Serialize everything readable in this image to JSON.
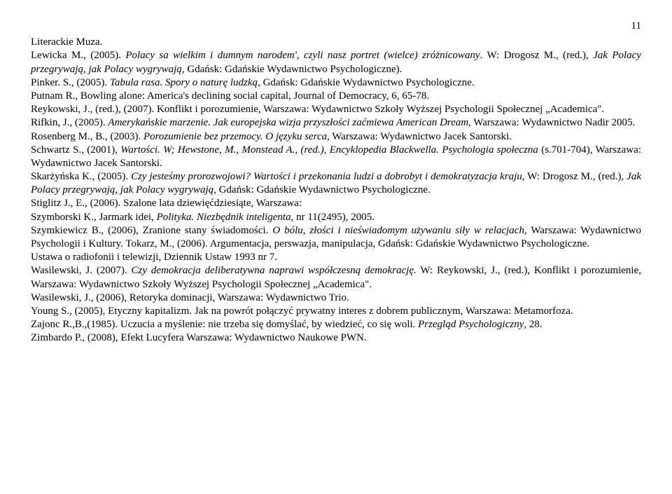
{
  "page_number": "11",
  "entries": [
    {
      "segments": [
        {
          "t": "Literackie Muza."
        }
      ]
    },
    {
      "segments": [
        {
          "t": "Lewicka M., (2005). "
        },
        {
          "t": "Polacy sa wielkim i dumnym narodem', czyli nasz portret (wielce) zróżnicowany",
          "i": true
        },
        {
          "t": ". W: Drogosz M., (red.), "
        },
        {
          "t": "Jak Polacy przegrywają, jak Polacy wygrywają",
          "i": true
        },
        {
          "t": ", Gdańsk: Gdańskie Wydawnictwo Psychologiczne)."
        }
      ]
    },
    {
      "segments": [
        {
          "t": "Pinker. S., (2005). "
        },
        {
          "t": "Tabula rasa. Spory o naturę ludzką",
          "i": true
        },
        {
          "t": ", Gdańsk: Gdańskie Wydawnictwo Psychologiczne."
        }
      ]
    },
    {
      "segments": [
        {
          "t": "Putnam R., Bowling alone: America's declining social capital, Journal of Democracy, 6, 65-78."
        }
      ]
    },
    {
      "segments": [
        {
          "t": "Reykowski, J., (red.), (2007). Konflikt i porozumienie, Warszawa: Wydawnictwo Szkoły Wyższej Psychologii Społecznej „Academica\"."
        }
      ]
    },
    {
      "segments": [
        {
          "t": "Rifkin, J., (2005). "
        },
        {
          "t": "Amerykańskie marzenie. Jak europejska wizja przyszłości zaćmiewa American Dream",
          "i": true
        },
        {
          "t": ", Warszawa: Wydawnictwo Nadir 2005."
        }
      ]
    },
    {
      "segments": [
        {
          "t": "Rosenberg M., B., (2003). "
        },
        {
          "t": "Porozumienie bez przemocy. O języku serca",
          "i": true
        },
        {
          "t": ", Warszawa: Wydawnictwo Jacek Santorski."
        }
      ]
    },
    {
      "segments": [
        {
          "t": "Schwartz S., (2001), "
        },
        {
          "t": "Wartości. W; Hewstone, M., Monstead A., (red.), Encyklopedia Blackwella. Psychologia społeczna",
          "i": true
        },
        {
          "t": " (s.701-704), Warszawa: Wydawnictwo Jacek Santorski."
        }
      ]
    },
    {
      "segments": [
        {
          "t": "Skarżyńska K., (2005). "
        },
        {
          "t": "Czy jesteśmy prorozwojowi? Wartości i przekonania ludzi a dobrobyt i demokratyzacja kraju,",
          "i": true
        },
        {
          "t": " W: Drogosz M., (red.), "
        },
        {
          "t": "Jak Polacy przegrywają, jak Polacy wygrywają,",
          "i": true
        },
        {
          "t": " Gdańsk: Gdańskie Wydawnictwo Psychologiczne."
        }
      ]
    },
    {
      "segments": [
        {
          "t": "Stiglitz J., E., (2006). Szalone lata dziewięćdziesiąte, Warszawa:"
        }
      ]
    },
    {
      "segments": [
        {
          "t": "Szymborski K., Jarmark idei, "
        },
        {
          "t": "Polityka. Niezbędnik inteligenta",
          "i": true
        },
        {
          "t": ", nr 11(2495), 2005."
        }
      ]
    },
    {
      "segments": [
        {
          "t": "Szymkiewicz B., (2006), Zranione stany świadomości. "
        },
        {
          "t": "O bólu, złości i nieświadomym używaniu siły w relacjach",
          "i": true
        },
        {
          "t": ", Warszawa: Wydawnictwo Psychologii i Kultury.  Tokarz, M., (2006). Argumentacja, perswazja, manipulacja, Gdańsk: Gdańskie Wydawnictwo Psychologiczne."
        }
      ]
    },
    {
      "segments": [
        {
          "t": "Ustawa o radiofonii i telewizji, Dziennik Ustaw 1993 nr 7."
        }
      ]
    },
    {
      "segments": [
        {
          "t": "Wasilewski, J. (2007). "
        },
        {
          "t": "Czy demokracja deliberatywna naprawi współczesną demokrację.",
          "i": true
        },
        {
          "t": " W: Reykowski, J., (red.), Konflikt i porozumienie, Warszawa: Wydawnictwo Szkoły Wyższej Psychologii Społecznej „Academica\"."
        }
      ]
    },
    {
      "segments": [
        {
          "t": "Wasilewski, J., (2006), Retoryka dominacji, Warszawa: Wydawnictwo Trio."
        }
      ]
    },
    {
      "segments": [
        {
          "t": "Young S., (2005), Etyczny kapitalizm. Jak na powrót połączyć prywatny interes z dobrem publicznym, Warszawa: Metamorfoza."
        }
      ]
    },
    {
      "segments": [
        {
          "t": "Zajonc R.,B.,(1985). Uczucia a myślenie: nie trzeba się domyślać, by wiedzieć, co się woli. "
        },
        {
          "t": "Przegląd Psychologiczny",
          "i": true
        },
        {
          "t": ", 28."
        }
      ]
    },
    {
      "segments": [
        {
          "t": "Zimbardo P., (2008), Efekt Lucyfera Warszawa: Wydawnictwo Naukowe PWN."
        }
      ]
    }
  ]
}
